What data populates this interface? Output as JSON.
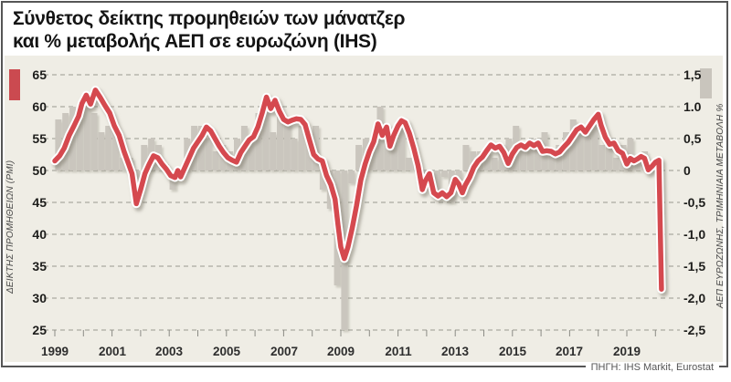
{
  "title": {
    "line1": "Σύνθετος δείκτης προμηθειών των μάνατζερ",
    "line2": "και % μεταβολής ΑΕΠ σε ευρωζώνη (IHS)"
  },
  "source": "ΠΗΓΗ: IHS Markit, Eurostat",
  "colors": {
    "pmi_line": "#d5494f",
    "pmi_outline": "#ffffff",
    "gdp_bar": "#cac6be",
    "panel_bg": "#efede5",
    "grid": "#999990",
    "frame": "#565656",
    "legend_pmi": "#cb4a50",
    "legend_gdp": "#c9c5bd"
  },
  "left_axis": {
    "label": "ΔΕΙΚΤΗΣ ΠΡΟΜΗΘΕΙΩΝ (PMI)",
    "ticks": [
      "65",
      "60",
      "55",
      "50",
      "45",
      "40",
      "35",
      "30",
      "25"
    ]
  },
  "right_axis": {
    "label": "ΑΕΠ ΕΥΡΩΖΩΝΗΣ, ΤΡΙΜΗΝΙΑΙΑ ΜΕΤΑΒΟΛΗ %",
    "ticks": [
      "1,5",
      "1.0",
      "0,5",
      "0",
      "-0,5",
      "-1,0",
      "-1,5",
      "-2,0",
      "-2,5"
    ]
  },
  "x_axis": {
    "labels": [
      "1999",
      "2001",
      "2003",
      "2005",
      "2007",
      "2009",
      "2011",
      "2013",
      "2015",
      "2017",
      "2019"
    ]
  },
  "chart_data": {
    "type": "line",
    "title": "Σύνθετος δείκτης προμηθειών των μάνατζερ και % μεταβολής ΑΕΠ σε ευρωζώνη (IHS)",
    "xlabel": "",
    "ylabel_left": "ΔΕΙΚΤΗΣ ΠΡΟΜΗΘΕΙΩΝ (PMI)",
    "ylabel_right": "ΑΕΠ ΕΥΡΩΖΩΝΗΣ, ΤΡΙΜΗΝΙΑΙΑ ΜΕΤΑΒΟΛΗ %",
    "xlim": [
      1999,
      2020.5
    ],
    "left_ylim": [
      25,
      65
    ],
    "right_ylim": [
      -2.5,
      1.5
    ],
    "grid": "horizontal-dashed",
    "legend_position": "top-corners",
    "series": [
      {
        "name": "Σύνθετος δείκτης προμηθειών των μάνατζερ (PMI)",
        "type": "line",
        "axis": "left",
        "color": "#d5494f",
        "points": [
          [
            1999.0,
            51.5
          ],
          [
            1999.17,
            52.3
          ],
          [
            1999.33,
            53.5
          ],
          [
            1999.5,
            55.5
          ],
          [
            1999.67,
            57.0
          ],
          [
            1999.83,
            58.5
          ],
          [
            1999.95,
            60.5
          ],
          [
            2000.1,
            61.8
          ],
          [
            2000.25,
            60.4
          ],
          [
            2000.42,
            62.6
          ],
          [
            2000.58,
            61.5
          ],
          [
            2000.75,
            60.2
          ],
          [
            2000.92,
            59.0
          ],
          [
            2001.08,
            57.0
          ],
          [
            2001.25,
            55.5
          ],
          [
            2001.42,
            53.0
          ],
          [
            2001.58,
            51.0
          ],
          [
            2001.7,
            49.5
          ],
          [
            2001.85,
            44.8
          ],
          [
            2002.0,
            47.0
          ],
          [
            2002.15,
            49.5
          ],
          [
            2002.3,
            51.0
          ],
          [
            2002.45,
            52.3
          ],
          [
            2002.6,
            52.0
          ],
          [
            2002.75,
            51.0
          ],
          [
            2002.9,
            50.2
          ],
          [
            2003.05,
            49.2
          ],
          [
            2003.2,
            48.9
          ],
          [
            2003.3,
            50.0
          ],
          [
            2003.4,
            49.0
          ],
          [
            2003.55,
            50.5
          ],
          [
            2003.7,
            52.0
          ],
          [
            2003.85,
            53.5
          ],
          [
            2004.0,
            54.5
          ],
          [
            2004.15,
            55.5
          ],
          [
            2004.3,
            56.8
          ],
          [
            2004.45,
            56.2
          ],
          [
            2004.6,
            55.0
          ],
          [
            2004.75,
            53.8
          ],
          [
            2004.9,
            52.8
          ],
          [
            2005.05,
            52.0
          ],
          [
            2005.2,
            51.6
          ],
          [
            2005.35,
            51.3
          ],
          [
            2005.5,
            52.8
          ],
          [
            2005.65,
            53.8
          ],
          [
            2005.8,
            54.8
          ],
          [
            2005.95,
            55.3
          ],
          [
            2006.1,
            56.8
          ],
          [
            2006.25,
            59.0
          ],
          [
            2006.4,
            61.5
          ],
          [
            2006.55,
            59.7
          ],
          [
            2006.7,
            61.0
          ],
          [
            2006.85,
            59.3
          ],
          [
            2007.0,
            58.0
          ],
          [
            2007.15,
            57.6
          ],
          [
            2007.3,
            57.9
          ],
          [
            2007.45,
            58.1
          ],
          [
            2007.6,
            58.0
          ],
          [
            2007.75,
            57.2
          ],
          [
            2007.9,
            54.8
          ],
          [
            2008.05,
            52.5
          ],
          [
            2008.2,
            51.8
          ],
          [
            2008.35,
            51.5
          ],
          [
            2008.5,
            49.2
          ],
          [
            2008.65,
            47.8
          ],
          [
            2008.8,
            45.5
          ],
          [
            2008.9,
            41.5
          ],
          [
            2009.0,
            38.0
          ],
          [
            2009.12,
            36.2
          ],
          [
            2009.25,
            38.0
          ],
          [
            2009.4,
            41.0
          ],
          [
            2009.55,
            44.5
          ],
          [
            2009.7,
            48.5
          ],
          [
            2009.85,
            51.0
          ],
          [
            2010.0,
            53.0
          ],
          [
            2010.15,
            54.5
          ],
          [
            2010.3,
            57.3
          ],
          [
            2010.45,
            55.5
          ],
          [
            2010.6,
            56.8
          ],
          [
            2010.72,
            53.8
          ],
          [
            2010.85,
            55.5
          ],
          [
            2011.0,
            57.0
          ],
          [
            2011.12,
            57.8
          ],
          [
            2011.25,
            57.5
          ],
          [
            2011.4,
            55.8
          ],
          [
            2011.55,
            53.5
          ],
          [
            2011.7,
            50.8
          ],
          [
            2011.85,
            47.0
          ],
          [
            2011.95,
            48.3
          ],
          [
            2012.1,
            49.5
          ],
          [
            2012.25,
            46.5
          ],
          [
            2012.4,
            46.0
          ],
          [
            2012.55,
            46.5
          ],
          [
            2012.7,
            45.9
          ],
          [
            2012.85,
            46.5
          ],
          [
            2013.0,
            48.6
          ],
          [
            2013.12,
            47.9
          ],
          [
            2013.25,
            46.5
          ],
          [
            2013.35,
            47.7
          ],
          [
            2013.5,
            48.9
          ],
          [
            2013.65,
            50.5
          ],
          [
            2013.8,
            51.5
          ],
          [
            2013.95,
            52.1
          ],
          [
            2014.1,
            53.1
          ],
          [
            2014.25,
            54.0
          ],
          [
            2014.4,
            53.5
          ],
          [
            2014.55,
            53.8
          ],
          [
            2014.7,
            52.8
          ],
          [
            2014.85,
            51.1
          ],
          [
            2015.0,
            52.6
          ],
          [
            2015.15,
            53.6
          ],
          [
            2015.3,
            54.0
          ],
          [
            2015.45,
            53.6
          ],
          [
            2015.6,
            54.3
          ],
          [
            2015.75,
            53.9
          ],
          [
            2015.9,
            54.3
          ],
          [
            2016.05,
            53.0
          ],
          [
            2016.2,
            53.1
          ],
          [
            2016.35,
            53.0
          ],
          [
            2016.5,
            52.6
          ],
          [
            2016.65,
            52.9
          ],
          [
            2016.8,
            53.7
          ],
          [
            2016.95,
            54.4
          ],
          [
            2017.1,
            55.4
          ],
          [
            2017.25,
            56.4
          ],
          [
            2017.4,
            56.8
          ],
          [
            2017.55,
            56.0
          ],
          [
            2017.7,
            57.0
          ],
          [
            2017.85,
            58.0
          ],
          [
            2018.0,
            58.8
          ],
          [
            2018.1,
            57.1
          ],
          [
            2018.25,
            55.2
          ],
          [
            2018.4,
            54.1
          ],
          [
            2018.55,
            54.3
          ],
          [
            2018.7,
            53.1
          ],
          [
            2018.85,
            52.7
          ],
          [
            2019.0,
            51.0
          ],
          [
            2019.12,
            51.9
          ],
          [
            2019.25,
            51.5
          ],
          [
            2019.37,
            51.8
          ],
          [
            2019.5,
            52.2
          ],
          [
            2019.62,
            51.9
          ],
          [
            2019.75,
            50.1
          ],
          [
            2019.87,
            50.6
          ],
          [
            2020.0,
            51.3
          ],
          [
            2020.12,
            51.6
          ],
          [
            2020.21,
            31.4
          ]
        ]
      },
      {
        "name": "% μεταβολής ΑΕΠ ευρωζώνης, τριμηνιαία",
        "type": "bar",
        "axis": "right",
        "color": "#cac6be",
        "start_year": 1999,
        "interval_years": 0.25,
        "values": [
          0.8,
          0.9,
          1.0,
          1.0,
          1.0,
          0.9,
          0.6,
          0.7,
          0.7,
          0.2,
          0.2,
          -0.1,
          0.4,
          0.5,
          0.4,
          0.1,
          -0.3,
          -0.1,
          0.5,
          0.7,
          0.7,
          0.5,
          0.3,
          0.4,
          0.3,
          0.5,
          0.7,
          0.5,
          0.9,
          1.1,
          0.6,
          0.9,
          0.8,
          0.5,
          0.7,
          0.5,
          0.7,
          -0.3,
          -0.6,
          -1.8,
          -2.5,
          -0.2,
          0.4,
          0.5,
          0.5,
          1.0,
          0.5,
          0.5,
          0.7,
          0.2,
          0.2,
          -0.2,
          -0.1,
          -0.3,
          -0.1,
          -0.5,
          -0.2,
          0.4,
          0.3,
          0.3,
          0.3,
          0.2,
          0.4,
          0.5,
          0.7,
          0.4,
          0.4,
          0.5,
          0.6,
          0.3,
          0.4,
          0.6,
          0.8,
          0.7,
          0.7,
          0.8,
          0.4,
          0.4,
          0.2,
          0.4,
          0.5,
          0.2,
          0.3,
          0.1
        ]
      }
    ]
  }
}
